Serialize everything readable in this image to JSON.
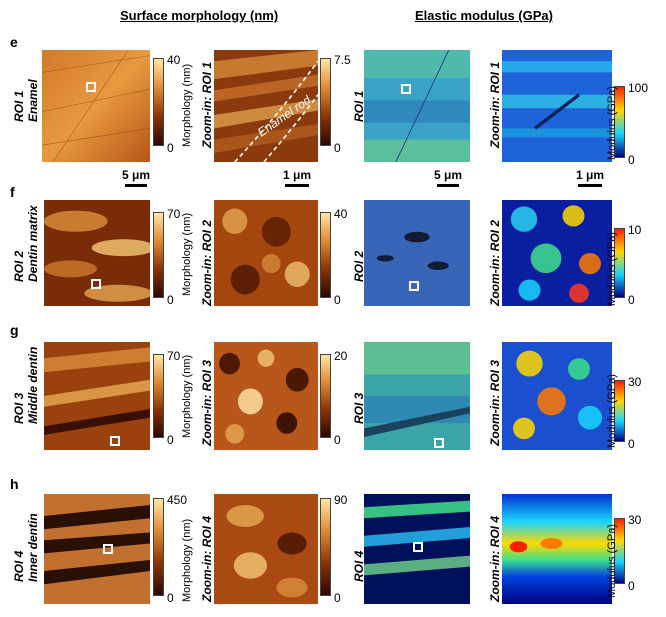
{
  "headers": {
    "left": "Surface morphology (nm)",
    "right": "Elastic modulus (GPa)"
  },
  "rows": [
    {
      "panel": "e",
      "roi": "ROI 1",
      "tissue": "Enamel",
      "zoom_label": "Zoom-in: ROI 1",
      "morph_max": "40",
      "morph_min": "0",
      "zoom_morph_max": "7.5",
      "zoom_morph_min": "0",
      "modulus_max": "100",
      "modulus_min": "0",
      "roi_label": "ROI 1",
      "zoom_mod_label": "Zoom-in: ROI 1",
      "annotation": "Enamel rod"
    },
    {
      "panel": "f",
      "roi": "ROI 2",
      "tissue": "Dentin matrix",
      "zoom_label": "Zoom-in: ROI 2",
      "morph_max": "70",
      "morph_min": "0",
      "zoom_morph_max": "40",
      "zoom_morph_min": "0",
      "modulus_max": "10",
      "modulus_min": "0",
      "roi_label": "ROI 2",
      "zoom_mod_label": "Zoom-in: ROI 2"
    },
    {
      "panel": "g",
      "roi": "ROI 3",
      "tissue": "Middle dentin",
      "zoom_label": "Zoom-in: ROI 3",
      "morph_max": "70",
      "morph_min": "0",
      "zoom_morph_max": "20",
      "zoom_morph_min": "0",
      "modulus_max": "30",
      "modulus_min": "0",
      "roi_label": "ROI 3",
      "zoom_mod_label": "Zoom-in: ROI 3"
    },
    {
      "panel": "h",
      "roi": "ROI 4",
      "tissue": "Inner dentin",
      "zoom_label": "Zoom-in: ROI 4",
      "morph_max": "450",
      "morph_min": "0",
      "zoom_morph_max": "90",
      "zoom_morph_min": "0",
      "modulus_max": "30",
      "modulus_min": "0",
      "roi_label": "ROI 4",
      "zoom_mod_label": "Zoom-in: ROI 4"
    }
  ],
  "colorbar_titles": {
    "morphology": "Morphology (nm)",
    "modulus": "Modulus (GPa)"
  },
  "scale_bars": [
    "5 μm",
    "1 μm",
    "5 μm",
    "1 μm"
  ],
  "colors": {
    "copper_dark": "#2a0700",
    "copper_mid": "#b8571b",
    "copper_light": "#ffe7a6",
    "jet_low": "#00007f",
    "jet_mid": "#19d4ff",
    "jet_high": "#ff1f00"
  }
}
